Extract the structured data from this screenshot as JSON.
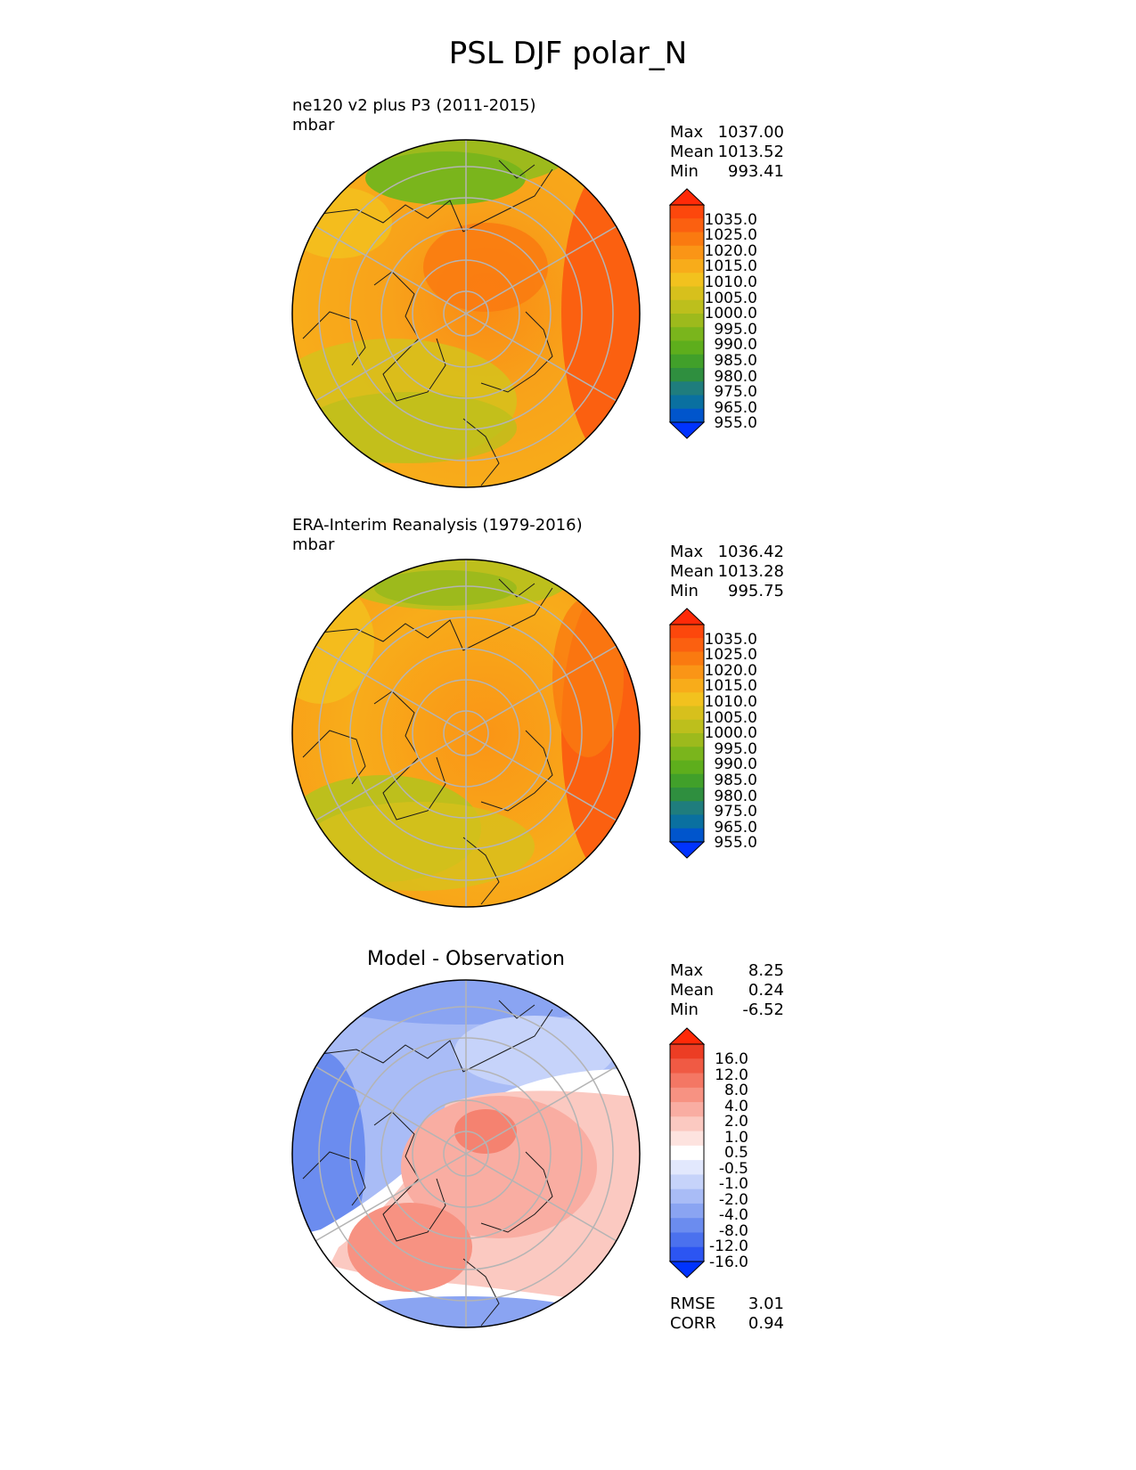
{
  "title": "PSL DJF polar_N",
  "colors": {
    "abs_scale": [
      "#0033ff",
      "#0055cc",
      "#0a70a0",
      "#1f7d7d",
      "#2f8f3f",
      "#41a02a",
      "#5eae1c",
      "#7ab51c",
      "#9dba1c",
      "#bdbf1c",
      "#d7c01c",
      "#f2c21e",
      "#f8ac1a",
      "#fa9516",
      "#fa7a10",
      "#fb6010",
      "#fd470c",
      "#ff2a08"
    ],
    "diff_scale": [
      "#0033ff",
      "#2c55f2",
      "#4b71ee",
      "#6b8cef",
      "#8aa4f2",
      "#a9bcf6",
      "#c6d3fa",
      "#e2e8fd",
      "#ffffff",
      "#fde3df",
      "#fbc9c1",
      "#f9ada2",
      "#f79282",
      "#f47764",
      "#f05a44",
      "#ec3d24",
      "#ff2a08"
    ]
  },
  "panels": [
    {
      "title": "ne120 v2 plus P3 (2011-2015)",
      "units": "mbar",
      "stats": [
        {
          "label": "Max",
          "value": "1037.00"
        },
        {
          "label": "Mean",
          "value": "1013.52"
        },
        {
          "label": "Min",
          "value": "993.41"
        }
      ],
      "colorbar_labels": [
        "1035.0",
        "1025.0",
        "1020.0",
        "1015.0",
        "1010.0",
        "1005.0",
        "1000.0",
        "995.0",
        "990.0",
        "985.0",
        "980.0",
        "975.0",
        "965.0",
        "955.0"
      ]
    },
    {
      "title": "ERA-Interim Reanalysis (1979-2016)",
      "units": "mbar",
      "stats": [
        {
          "label": "Max",
          "value": "1036.42"
        },
        {
          "label": "Mean",
          "value": "1013.28"
        },
        {
          "label": "Min",
          "value": "995.75"
        }
      ],
      "colorbar_labels": [
        "1035.0",
        "1025.0",
        "1020.0",
        "1015.0",
        "1010.0",
        "1005.0",
        "1000.0",
        "995.0",
        "990.0",
        "985.0",
        "980.0",
        "975.0",
        "965.0",
        "955.0"
      ]
    },
    {
      "title": "Model - Observation",
      "stats": [
        {
          "label": "Max",
          "value": "8.25"
        },
        {
          "label": "Mean",
          "value": "0.24"
        },
        {
          "label": "Min",
          "value": "-6.52"
        }
      ],
      "colorbar_labels": [
        "16.0",
        "12.0",
        "8.0",
        "4.0",
        "2.0",
        "1.0",
        "0.5",
        "-0.5",
        "-1.0",
        "-2.0",
        "-4.0",
        "-8.0",
        "-12.0",
        "-16.0"
      ],
      "metrics": [
        {
          "label": "RMSE",
          "value": "3.01"
        },
        {
          "label": "CORR",
          "value": "0.94"
        }
      ]
    }
  ]
}
